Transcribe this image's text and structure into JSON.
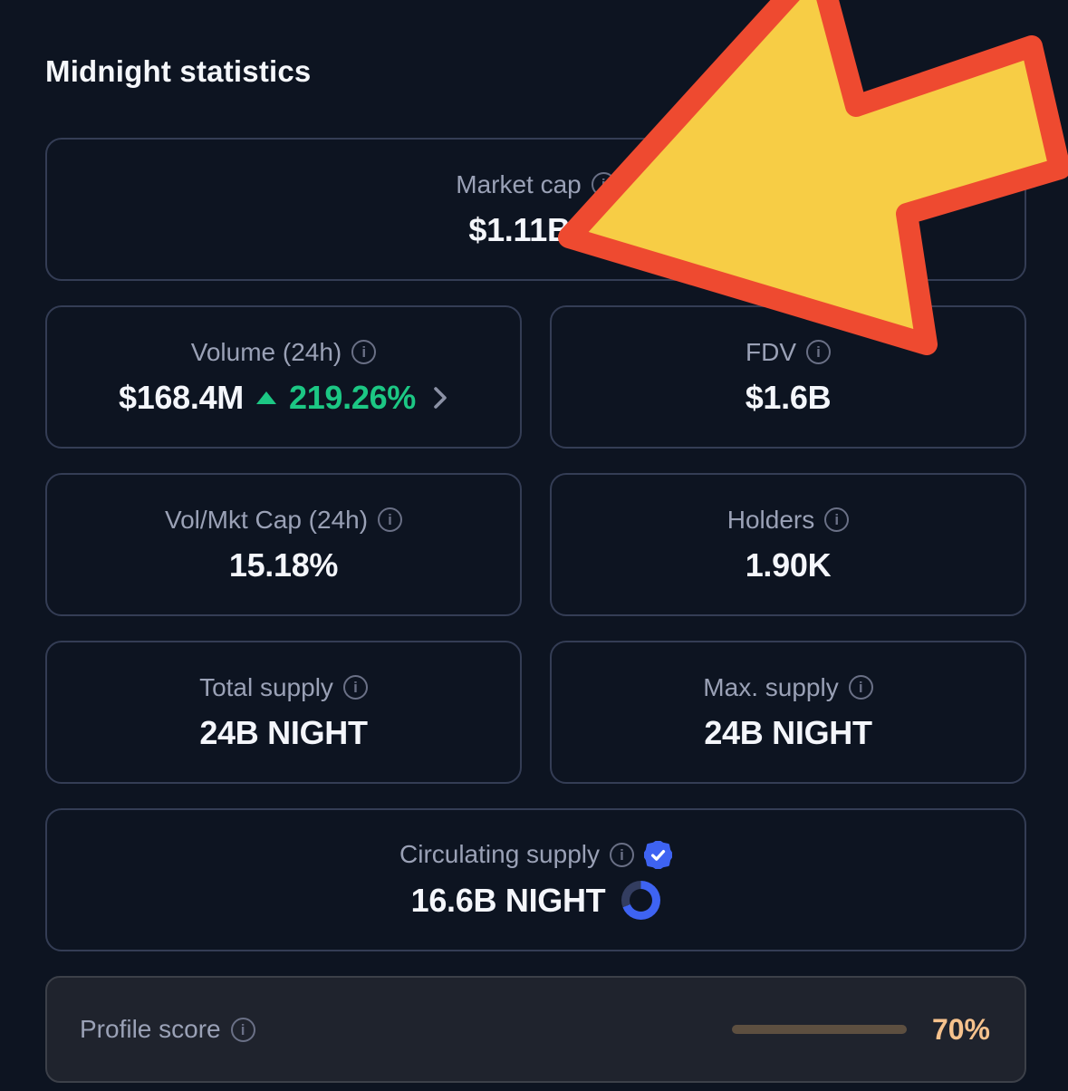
{
  "page": {
    "title": "Midnight statistics"
  },
  "icons": {
    "info_glyph": "i"
  },
  "cards": {
    "market_cap": {
      "label": "Market cap",
      "value": "$1.11B",
      "change_direction": "up"
    },
    "volume": {
      "label": "Volume (24h)",
      "value": "$168.4M",
      "change": "219.26%",
      "change_direction": "up"
    },
    "fdv": {
      "label": "FDV",
      "value": "$1.6B"
    },
    "vol_mkt_cap": {
      "label": "Vol/Mkt Cap (24h)",
      "value": "15.18%"
    },
    "holders": {
      "label": "Holders",
      "value": "1.90K"
    },
    "total_supply": {
      "label": "Total supply",
      "value": "24B NIGHT"
    },
    "max_supply": {
      "label": "Max. supply",
      "value": "24B NIGHT"
    },
    "circulating_supply": {
      "label": "Circulating supply",
      "value": "16.6B NIGHT",
      "ring_percent": 69,
      "verified": true
    },
    "profile_score": {
      "label": "Profile score",
      "value": "70%",
      "progress_percent": 70
    }
  },
  "colors": {
    "background": "#0d1421",
    "card_border": "#343d55",
    "label_gray": "#9aa1b6",
    "value_white": "#f4f6fb",
    "green": "#1cc784",
    "blue": "#3e63f2",
    "ring_rest": "#333d60",
    "peach_fill": "#f2bc89",
    "peach_text": "#f6c28d",
    "track_brown": "#5d4f40",
    "arrow_yellow": "#f7cd45",
    "arrow_red": "#ee4a30"
  }
}
